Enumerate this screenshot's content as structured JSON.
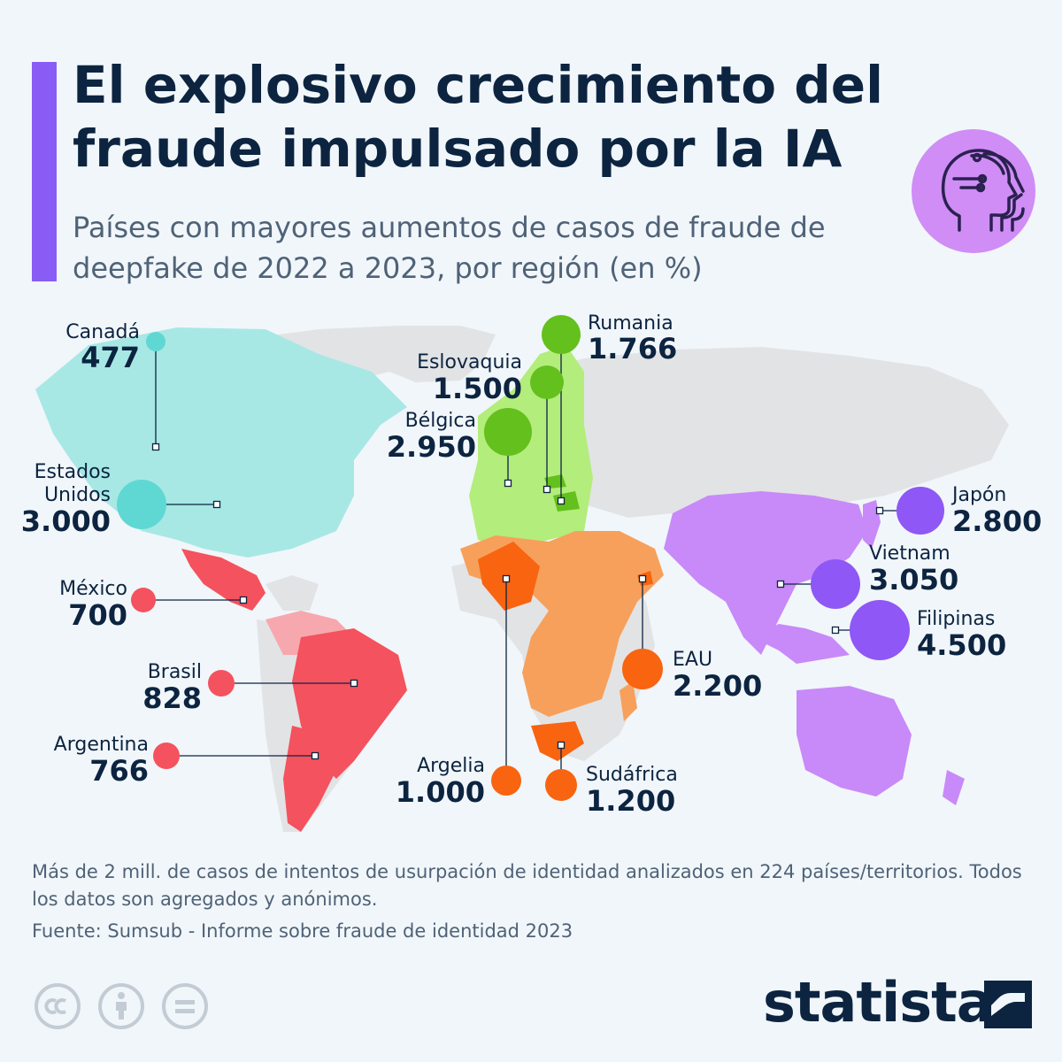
{
  "header": {
    "title": "El explosivo crecimiento del fraude impulsado por la IA",
    "subtitle": "Países con mayores aumentos de casos de fraude de deepfake de 2022 a 2023, por región (en %)"
  },
  "colors": {
    "north_america": "#5fd8d3",
    "latin_america": "#f4525e",
    "europe": "#64c01c",
    "africa_middle_east": "#f86410",
    "asia_pacific": "#8f57f5",
    "accent": "#8a5cf6",
    "text": "#0c2440"
  },
  "icons": [
    "ai-head-icon",
    "cc-icon",
    "by-person-icon",
    "equals-icon",
    "statista-logo-icon"
  ],
  "markers": [
    {
      "country": "Canadá",
      "value": "477",
      "color": "#5fd8d3",
      "region": "north_america"
    },
    {
      "country": "Estados Unidos",
      "value": "3.000",
      "color": "#5fd8d3",
      "region": "north_america"
    },
    {
      "country": "México",
      "value": "700",
      "color": "#f4525e",
      "region": "latin_america"
    },
    {
      "country": "Brasil",
      "value": "828",
      "color": "#f4525e",
      "region": "latin_america"
    },
    {
      "country": "Argentina",
      "value": "766",
      "color": "#f4525e",
      "region": "latin_america"
    },
    {
      "country": "Rumania",
      "value": "1.766",
      "color": "#64c01c",
      "region": "europe"
    },
    {
      "country": "Eslovaquia",
      "value": "1.500",
      "color": "#64c01c",
      "region": "europe"
    },
    {
      "country": "Bélgica",
      "value": "2.950",
      "color": "#64c01c",
      "region": "europe"
    },
    {
      "country": "Argelia",
      "value": "1.000",
      "color": "#f86410",
      "region": "africa_middle_east"
    },
    {
      "country": "Sudáfrica",
      "value": "1.200",
      "color": "#f86410",
      "region": "africa_middle_east"
    },
    {
      "country": "EAU",
      "value": "2.200",
      "color": "#f86410",
      "region": "africa_middle_east"
    },
    {
      "country": "Japón",
      "value": "2.800",
      "color": "#8f57f5",
      "region": "asia_pacific"
    },
    {
      "country": "Vietnam",
      "value": "3.050",
      "color": "#8f57f5",
      "region": "asia_pacific"
    },
    {
      "country": "Filipinas",
      "value": "4.500",
      "color": "#8f57f5",
      "region": "asia_pacific"
    }
  ],
  "labels": {
    "canada_name": "Canadá",
    "canada_value": "477",
    "usa_name_1": "Estados",
    "usa_name_2": "Unidos",
    "usa_value": "3.000",
    "mexico_name": "México",
    "mexico_value": "700",
    "brasil_name": "Brasil",
    "brasil_value": "828",
    "argentina_name": "Argentina",
    "argentina_value": "766",
    "rumania_name": "Rumania",
    "rumania_value": "1.766",
    "eslovaquia_name": "Eslovaquia",
    "eslovaquia_value": "1.500",
    "belgica_name": "Bélgica",
    "belgica_value": "2.950",
    "argelia_name": "Argelia",
    "argelia_value": "1.000",
    "sudafrica_name": "Sudáfrica",
    "sudafrica_value": "1.200",
    "eau_name": "EAU",
    "eau_value": "2.200",
    "japon_name": "Japón",
    "japon_value": "2.800",
    "vietnam_name": "Vietnam",
    "vietnam_value": "3.050",
    "filipinas_name": "Filipinas",
    "filipinas_value": "4.500"
  },
  "footer": {
    "note": "Más de 2 mill. de casos de intentos de usurpación de identidad analizados en 224 países/territorios. Todos los datos son agregados y anónimos.",
    "source": "Fuente: Sumsub - Informe sobre fraude de identidad 2023",
    "brand": "statista"
  }
}
